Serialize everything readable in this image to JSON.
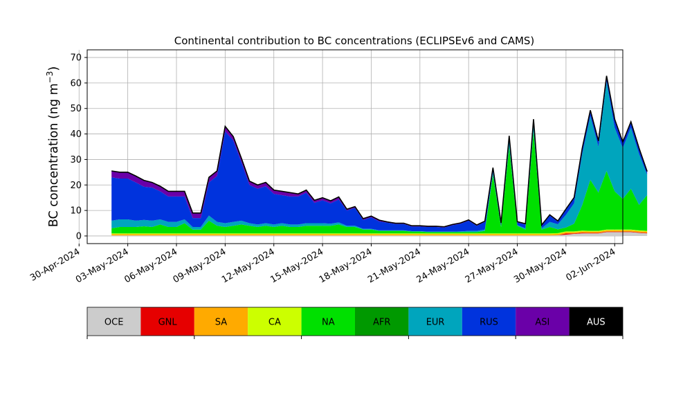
{
  "chart_data": {
    "type": "area",
    "stacked": true,
    "title": "Continental contribution to BC concentrations (ECLIPSEv6 and CAMS)",
    "ylabel_main": "BC concentration (ng m",
    "ylabel_exp": "−3",
    "ylabel_close": ")",
    "xlabel": "",
    "ylim": [
      -3,
      73
    ],
    "xlim": [
      "2024-04-30T12:00",
      "2024-06-02T12:00"
    ],
    "grid": true,
    "y_ticks": [
      0,
      10,
      20,
      30,
      40,
      50,
      60,
      70
    ],
    "x_ticks": [
      "2024-04-30",
      "2024-05-03",
      "2024-05-06",
      "2024-05-09",
      "2024-05-12",
      "2024-05-15",
      "2024-05-18",
      "2024-05-21",
      "2024-05-24",
      "2024-05-27",
      "2024-05-30",
      "2024-06-02"
    ],
    "x_tick_labels": [
      "30-Apr-2024",
      "03-May-2024",
      "06-May-2024",
      "09-May-2024",
      "12-May-2024",
      "15-May-2024",
      "18-May-2024",
      "21-May-2024",
      "24-May-2024",
      "27-May-2024",
      "30-May-2024",
      "02-Jun-2024"
    ],
    "x_start": "2024-05-02T00:00",
    "x_step_hours": 12,
    "total_color": "#000000",
    "series": [
      {
        "name": "OCE",
        "color": "#cccccc",
        "values": [
          0.2,
          0.2,
          0.2,
          0.2,
          0.2,
          0.2,
          0.2,
          0.2,
          0.2,
          0.2,
          0.2,
          0.2,
          0.2,
          0.2,
          0.2,
          0.2,
          0.2,
          0.2,
          0.2,
          0.2,
          0.2,
          0.2,
          0.2,
          0.2,
          0.2,
          0.2,
          0.2,
          0.2,
          0.2,
          0.2,
          0.2,
          0.2,
          0.2,
          0.2,
          0.2,
          0.2,
          0.2,
          0.2,
          0.2,
          0.2,
          0.2,
          0.2,
          0.2,
          0.2,
          0.2,
          0.2,
          0.2,
          0.2,
          0.2,
          0.2,
          0.2,
          0.2,
          0.2,
          0.2,
          0.2,
          0.3,
          0.5,
          0.8,
          1,
          1,
          1,
          1.5,
          1.5,
          1.5,
          1.5,
          1.2,
          1
        ]
      },
      {
        "name": "GNL",
        "color": "#e60000",
        "values": [
          0,
          0,
          0,
          0,
          0,
          0,
          0,
          0,
          0,
          0,
          0,
          0,
          0,
          0,
          0,
          0,
          0,
          0,
          0,
          0,
          0,
          0,
          0,
          0,
          0,
          0,
          0,
          0,
          0,
          0,
          0,
          0,
          0,
          0,
          0,
          0,
          0,
          0,
          0,
          0,
          0,
          0,
          0,
          0,
          0,
          0,
          0,
          0,
          0,
          0,
          0,
          0,
          0,
          0,
          0,
          0,
          0.5,
          0.2,
          0.3,
          0.2,
          0.2,
          0.2,
          0.2,
          0.2,
          0.2,
          0.2,
          0.2
        ]
      },
      {
        "name": "SA",
        "color": "#ffaa00",
        "values": [
          0.5,
          0.5,
          0.5,
          0.5,
          0.5,
          0.5,
          0.5,
          0.5,
          0.5,
          0.5,
          0.5,
          0.5,
          0.5,
          0.5,
          0.5,
          0.5,
          0.5,
          0.5,
          0.5,
          0.5,
          0.5,
          0.5,
          0.5,
          0.5,
          0.5,
          0.5,
          0.5,
          0.5,
          0.5,
          0.5,
          0.5,
          0.5,
          0.5,
          0.5,
          0.5,
          0.5,
          0.5,
          0.5,
          0.5,
          0.5,
          0.5,
          0.5,
          0.5,
          0.5,
          0.5,
          0.5,
          0.5,
          0.5,
          0.5,
          0.5,
          0.5,
          0.5,
          0.5,
          0.5,
          0.5,
          0.5,
          0.5,
          0.5,
          0.5,
          0.5,
          0.5,
          0.5,
          0.5,
          0.5,
          0.5,
          0.5,
          0.5
        ]
      },
      {
        "name": "CA",
        "color": "#ccff00",
        "values": [
          0.3,
          0.3,
          0.3,
          0.3,
          0.3,
          0.3,
          0.3,
          0.3,
          0.3,
          0.3,
          0.3,
          0.3,
          0.3,
          0.3,
          0.3,
          0.3,
          0.3,
          0.3,
          0.3,
          0.3,
          0.3,
          0.3,
          0.3,
          0.3,
          0.3,
          0.3,
          0.3,
          0.3,
          0.3,
          0.3,
          0.3,
          0.3,
          0.3,
          0.3,
          0.3,
          0.3,
          0.3,
          0.3,
          0.3,
          0.3,
          0.3,
          0.3,
          0.3,
          0.3,
          0.3,
          0.3,
          0.3,
          0.3,
          0.3,
          0.3,
          0.3,
          0.3,
          0.3,
          0.3,
          0.3,
          0.3,
          0.3,
          0.3,
          0.3,
          0.3,
          0.3,
          0.3,
          0.3,
          0.3,
          0.3,
          0.3,
          0.3
        ]
      },
      {
        "name": "NA",
        "color": "#00e000",
        "values": [
          2,
          2.5,
          2.5,
          2.5,
          2.8,
          2.5,
          3.5,
          2.5,
          2.5,
          4,
          1.5,
          1.5,
          5,
          3,
          2.5,
          3,
          3.5,
          3,
          2.5,
          3,
          2.5,
          3,
          2.5,
          2.5,
          3,
          3,
          3,
          3,
          3.5,
          2.5,
          2.5,
          1.5,
          1.5,
          1,
          1,
          1,
          1,
          0.7,
          0.7,
          0.5,
          0.5,
          0.5,
          0.5,
          0.5,
          0.5,
          0.5,
          1,
          23,
          2.5,
          34,
          3,
          1.5,
          40,
          1.5,
          2.5,
          1.5,
          1.5,
          3,
          10,
          20,
          15,
          23,
          15,
          12,
          16,
          10,
          14
        ]
      },
      {
        "name": "AFR",
        "color": "#009900",
        "values": [
          0,
          0,
          0,
          0,
          0,
          0,
          0,
          0,
          0,
          0,
          0,
          0,
          0,
          0,
          0,
          0,
          0,
          0,
          0,
          0,
          0,
          0,
          0,
          0,
          0,
          0,
          0,
          0,
          0,
          0,
          0,
          0,
          0,
          0,
          0,
          0,
          0,
          0,
          0,
          0,
          0,
          0,
          0,
          0,
          0,
          0,
          0,
          0,
          0,
          0,
          0,
          0,
          0,
          0,
          0,
          0,
          0,
          0,
          0,
          0,
          0,
          0,
          0,
          0,
          0,
          0,
          0
        ]
      },
      {
        "name": "EUR",
        "color": "#00a5bd",
        "values": [
          3,
          3,
          3,
          2.5,
          2.5,
          2.5,
          2,
          2,
          2,
          1.5,
          1,
          1,
          2,
          1.5,
          1.5,
          1.5,
          1.5,
          1,
          1,
          1,
          1,
          1,
          1,
          1,
          1,
          1,
          1,
          0.8,
          0.8,
          0.5,
          0.5,
          0.3,
          0.3,
          0.2,
          0.2,
          0.2,
          0.2,
          0.2,
          0.2,
          0.2,
          0.2,
          0.2,
          0.2,
          0.3,
          0.5,
          0.5,
          0.5,
          1,
          0.3,
          2,
          0.3,
          0.5,
          3,
          0.5,
          2,
          2,
          5,
          8,
          20,
          25,
          18,
          35,
          25,
          20,
          24,
          20,
          8
        ]
      },
      {
        "name": "RUS",
        "color": "#0033dd",
        "values": [
          17,
          16,
          16,
          15,
          13,
          13,
          11,
          10,
          10,
          9,
          3.5,
          3.5,
          13,
          18,
          36,
          32,
          23,
          15,
          14,
          14.5,
          12,
          11,
          11,
          11,
          12,
          8,
          9,
          8,
          9,
          6,
          7,
          3.5,
          4.5,
          3.5,
          3,
          2.5,
          2.5,
          1.8,
          1.8,
          1.8,
          1.8,
          1.6,
          2.5,
          3,
          4,
          2,
          3,
          1.5,
          1,
          2,
          1,
          1.5,
          1.5,
          1,
          2.5,
          1,
          2,
          2,
          2,
          2,
          2,
          2,
          3,
          2,
          2,
          2,
          1
        ]
      },
      {
        "name": "ASI",
        "color": "#6a00a8",
        "values": [
          2.5,
          2.5,
          2.5,
          2.5,
          2.5,
          2,
          2,
          2,
          2,
          2,
          2,
          2,
          2,
          2,
          2,
          1.5,
          1.5,
          1.5,
          1.5,
          1.5,
          1.5,
          1.5,
          1.5,
          1,
          1,
          1,
          1,
          1,
          1,
          0.5,
          0.5,
          0.5,
          0.5,
          0.5,
          0.3,
          0.3,
          0.3,
          0.3,
          0.3,
          0.3,
          0.3,
          0.3,
          0.3,
          0.3,
          0.3,
          0.3,
          0.3,
          0.3,
          0.3,
          0.3,
          0.3,
          0.3,
          0.3,
          0.3,
          0.3,
          0.3,
          0.3,
          0.3,
          0.3,
          0.3,
          0.3,
          0.3,
          0.3,
          0.3,
          0.3,
          0.3,
          0.3
        ]
      },
      {
        "name": "AUS",
        "color": "#000000",
        "values": [
          0,
          0,
          0,
          0,
          0,
          0,
          0,
          0,
          0,
          0,
          0,
          0,
          0,
          0,
          0,
          0,
          0,
          0,
          0,
          0,
          0,
          0,
          0,
          0,
          0,
          0,
          0,
          0,
          0,
          0,
          0,
          0,
          0,
          0,
          0,
          0,
          0,
          0,
          0,
          0,
          0,
          0,
          0,
          0,
          0,
          0,
          0,
          0,
          0,
          0,
          0,
          0,
          0,
          0,
          0,
          0,
          0,
          0,
          0,
          0,
          0,
          0,
          0,
          0,
          0,
          0,
          0
        ]
      }
    ]
  }
}
